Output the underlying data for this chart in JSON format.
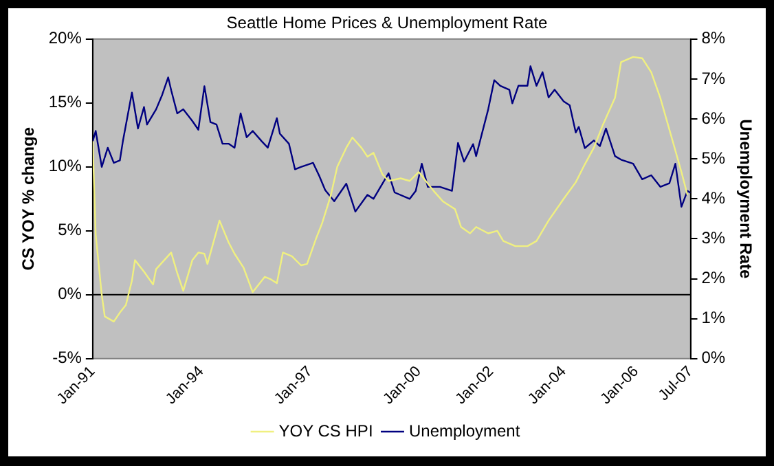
{
  "chart_data": {
    "type": "line",
    "title": "Seattle Home Prices & Unemployment Rate",
    "ylabel": "CS YOY % change",
    "y2label": "Unemployment Rate",
    "xlim": [
      "1991-01",
      "2007-07"
    ],
    "xticks": [
      {
        "value": "1991-01",
        "label": "Jan-91"
      },
      {
        "value": "1994-01",
        "label": "Jan-94"
      },
      {
        "value": "1997-01",
        "label": "Jan-97"
      },
      {
        "value": "2000-01",
        "label": "Jan-00"
      },
      {
        "value": "2002-01",
        "label": "Jan-02"
      },
      {
        "value": "2004-01",
        "label": "Jan-04"
      },
      {
        "value": "2006-01",
        "label": "Jan-06"
      },
      {
        "value": "2007-07",
        "label": "Jul-07"
      }
    ],
    "ylim": [
      -5,
      20
    ],
    "yticks": [
      {
        "value": -5,
        "label": "-5%"
      },
      {
        "value": 0,
        "label": "0%"
      },
      {
        "value": 5,
        "label": "5%"
      },
      {
        "value": 10,
        "label": "10%"
      },
      {
        "value": 15,
        "label": "15%"
      },
      {
        "value": 20,
        "label": "20%"
      }
    ],
    "y2lim": [
      0,
      8
    ],
    "y2ticks": [
      {
        "value": 0,
        "label": "0%"
      },
      {
        "value": 1,
        "label": "1%"
      },
      {
        "value": 2,
        "label": "2%"
      },
      {
        "value": 3,
        "label": "3%"
      },
      {
        "value": 4,
        "label": "4%"
      },
      {
        "value": 5,
        "label": "5%"
      },
      {
        "value": 6,
        "label": "6%"
      },
      {
        "value": 7,
        "label": "7%"
      },
      {
        "value": 8,
        "label": "8%"
      }
    ],
    "ref_lines": [
      {
        "axis": "y",
        "value": 0,
        "color": "#000000"
      }
    ],
    "legend": "bottom",
    "grid": false,
    "marker": "none",
    "line_style": "solid",
    "series": [
      {
        "name": "YOY CS HPI",
        "color": "#f0f080",
        "x": [
          "1991-01",
          "1991-02",
          "1991-04",
          "1991-05",
          "1991-08",
          "1991-10",
          "1991-12",
          "1992-02",
          "1992-03",
          "1992-06",
          "1992-09",
          "1992-10",
          "1993-03",
          "1993-05",
          "1993-07",
          "1993-10",
          "1993-12",
          "1994-02",
          "1994-03",
          "1994-07",
          "1994-10",
          "1994-12",
          "1995-03",
          "1995-06",
          "1995-10",
          "1995-12",
          "1996-02",
          "1996-04",
          "1996-07",
          "1996-10",
          "1996-12",
          "1997-03",
          "1997-05",
          "1997-07",
          "1997-08",
          "1997-10",
          "1998-01",
          "1998-03",
          "1998-06",
          "1998-08",
          "1998-10",
          "1999-01",
          "1999-03",
          "1999-07",
          "1999-10",
          "2000-01",
          "2000-03",
          "2000-06",
          "2000-09",
          "2001-01",
          "2001-03",
          "2001-06",
          "2001-08",
          "2001-12",
          "2002-03",
          "2002-05",
          "2002-09",
          "2003-01",
          "2003-04",
          "2003-08",
          "2004-01",
          "2004-05",
          "2004-08",
          "2004-11",
          "2005-02",
          "2005-06",
          "2005-08",
          "2005-12",
          "2006-03",
          "2006-06",
          "2006-09",
          "2007-01",
          "2007-04",
          "2007-06"
        ],
        "values": [
          12,
          4.7,
          0,
          -1.7,
          -2.1,
          -1.4,
          -0.8,
          1.1,
          2.7,
          1.8,
          0.8,
          2,
          3.3,
          1.7,
          0.3,
          2.7,
          3.3,
          3.2,
          2.4,
          5.8,
          4.1,
          3.2,
          2.1,
          0.2,
          1.4,
          1.2,
          0.9,
          3.3,
          3,
          2.3,
          2.4,
          4.4,
          5.6,
          7.1,
          7.9,
          10,
          11.5,
          12.3,
          11.5,
          10.8,
          11.1,
          9.4,
          8.9,
          9.1,
          8.9,
          9.6,
          9,
          8.1,
          7.3,
          6.7,
          5.3,
          4.8,
          5.3,
          4.8,
          5,
          4.2,
          3.8,
          3.8,
          4.2,
          5.8,
          7.5,
          8.8,
          10.2,
          11.5,
          13.3,
          15.4,
          18.2,
          18.6,
          18.5,
          17.4,
          15.4,
          12.1,
          9.6,
          7.8
        ]
      },
      {
        "name": "Unemployment",
        "color": "#000080",
        "axis": "y2",
        "x": [
          "1991-01",
          "1991-02",
          "1991-04",
          "1991-06",
          "1991-08",
          "1991-10",
          "1991-11",
          "1992-02",
          "1992-04",
          "1992-06",
          "1992-07",
          "1992-10",
          "1992-12",
          "1993-02",
          "1993-03",
          "1993-05",
          "1993-07",
          "1993-10",
          "1993-12",
          "1994-02",
          "1994-04",
          "1994-06",
          "1994-08",
          "1994-10",
          "1994-12",
          "1995-02",
          "1995-04",
          "1995-06",
          "1995-09",
          "1995-11",
          "1996-02",
          "1996-03",
          "1996-06",
          "1996-08",
          "1996-10",
          "1997-02",
          "1997-04",
          "1997-06",
          "1997-09",
          "1998-01",
          "1998-04",
          "1998-08",
          "1998-10",
          "1999-03",
          "1999-05",
          "1999-10",
          "1999-12",
          "2000-02",
          "2000-04",
          "2000-08",
          "2000-12",
          "2001-02",
          "2001-04",
          "2001-07",
          "2001-08",
          "2001-12",
          "2002-02",
          "2002-04",
          "2002-07",
          "2002-08",
          "2002-10",
          "2003-01",
          "2003-02",
          "2003-04",
          "2003-06",
          "2003-08",
          "2003-10",
          "2004-01",
          "2004-03",
          "2004-05",
          "2004-06",
          "2004-08",
          "2004-11",
          "2005-01",
          "2005-03",
          "2005-06",
          "2005-08",
          "2005-12",
          "2006-03",
          "2006-06",
          "2006-09",
          "2006-12",
          "2007-02",
          "2007-04",
          "2007-06",
          "2007-07"
        ],
        "values": [
          5.44,
          5.7,
          4.8,
          5.28,
          4.9,
          4.96,
          5.44,
          6.66,
          5.76,
          6.3,
          5.86,
          6.24,
          6.6,
          7.04,
          6.72,
          6.14,
          6.24,
          5.95,
          5.73,
          6.82,
          5.92,
          5.86,
          5.38,
          5.38,
          5.28,
          6.14,
          5.54,
          5.7,
          5.44,
          5.28,
          6.02,
          5.63,
          5.38,
          4.74,
          4.8,
          4.9,
          4.58,
          4.22,
          3.94,
          4.38,
          3.68,
          4.1,
          4,
          4.64,
          4.16,
          4,
          4.2,
          4.88,
          4.3,
          4.3,
          4.2,
          5.4,
          4.93,
          5.37,
          5.07,
          6.24,
          6.97,
          6.83,
          6.73,
          6.39,
          6.83,
          6.83,
          7.32,
          6.83,
          7.17,
          6.54,
          6.73,
          6.44,
          6.34,
          5.66,
          5.8,
          5.27,
          5.46,
          5.32,
          5.76,
          5.07,
          4.98,
          4.88,
          4.49,
          4.59,
          4.3,
          4.39,
          4.88,
          3.8,
          4.2,
          4.15
        ]
      }
    ]
  }
}
